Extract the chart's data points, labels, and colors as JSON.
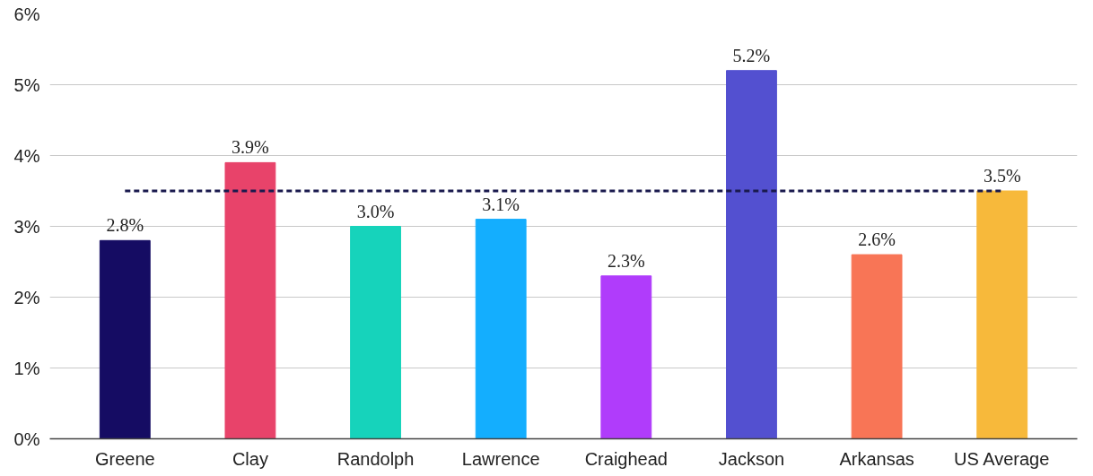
{
  "chart_data": {
    "type": "bar",
    "categories": [
      "Greene",
      "Clay",
      "Randolph",
      "Lawrence",
      "Craighead",
      "Jackson",
      "Arkansas",
      "US Average"
    ],
    "values": [
      2.8,
      3.9,
      3.0,
      3.1,
      2.3,
      5.2,
      2.6,
      3.5
    ],
    "colors": [
      "#150c63",
      "#e8436a",
      "#16d3bb",
      "#14aefe",
      "#b03cfb",
      "#5350d0",
      "#f87556",
      "#f7b93b"
    ],
    "value_labels": [
      "2.8%",
      "3.9%",
      "3.0%",
      "3.1%",
      "2.3%",
      "5.2%",
      "2.6%",
      "3.5%"
    ],
    "ylim": [
      0,
      6
    ],
    "yticks": [
      {
        "value": 0,
        "label": "0%"
      },
      {
        "value": 1,
        "label": "1%"
      },
      {
        "value": 2,
        "label": "2%"
      },
      {
        "value": 3,
        "label": "3%"
      },
      {
        "value": 4,
        "label": "4%"
      },
      {
        "value": 5,
        "label": "5%"
      },
      {
        "value": 6,
        "label": "6%"
      }
    ],
    "ref_lines": [
      {
        "axis": "y",
        "value": 3.5,
        "label": null,
        "color": "#1a1a4e",
        "line_style": "dashed"
      }
    ],
    "grid": "y"
  }
}
